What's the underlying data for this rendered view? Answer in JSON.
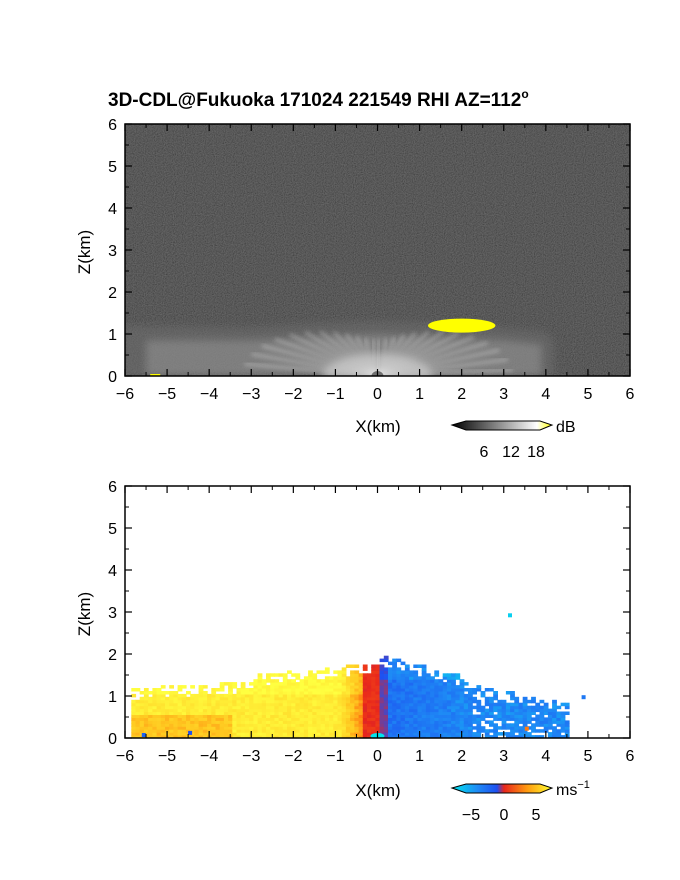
{
  "figure": {
    "title": "3D-CDL@Fukuoka 171024 221549 RHI AZ=112",
    "title_superscript": "o"
  },
  "chart_data": [
    {
      "type": "heatmap",
      "variable": "SNR",
      "xlabel": "X(km)",
      "ylabel": "Z(km)",
      "xlim": [
        -6,
        6
      ],
      "ylim": [
        0,
        6
      ],
      "xticks": [
        -6,
        -5,
        -4,
        -3,
        -2,
        -1,
        0,
        1,
        2,
        3,
        4,
        5,
        6
      ],
      "yticks": [
        0,
        1,
        2,
        3,
        4,
        5,
        6
      ],
      "colorbar": {
        "unit": "dB",
        "ticks": [
          "6",
          "12",
          "18"
        ],
        "range": [
          0,
          20
        ]
      },
      "colors": {
        "background_noise": "#262626",
        "bright": "#f2f2f2",
        "saturation": "#ffff00"
      },
      "features": [
        {
          "name": "boundary layer echo",
          "x_range": [
            -6,
            4
          ],
          "z_top": 1.2
        },
        {
          "name": "radial beams",
          "origin": [
            0,
            0
          ],
          "max_range_km": 4.2
        },
        {
          "name": "cloud echo",
          "x_range": [
            1.2,
            2.8
          ],
          "z_range": [
            1.0,
            1.4
          ]
        }
      ]
    },
    {
      "type": "heatmap",
      "variable": "Doppler velocity",
      "xlabel": "X(km)",
      "ylabel": "Z(km)",
      "xlim": [
        -6,
        6
      ],
      "ylim": [
        0,
        6
      ],
      "xticks": [
        -6,
        -5,
        -4,
        -3,
        -2,
        -1,
        0,
        1,
        2,
        3,
        4,
        5,
        6
      ],
      "yticks": [
        0,
        1,
        2,
        3,
        4,
        5,
        6
      ],
      "colorbar": {
        "unit": "ms",
        "unit_exponent": "−1",
        "ticks": [
          "−5",
          "0",
          "5"
        ],
        "range": [
          -7,
          7
        ]
      },
      "colors": {
        "negative": "#1e6ff0",
        "near_zero": "#e8261c",
        "positive": "#ffe800",
        "low_extreme": "#00e5ee"
      },
      "features": [
        {
          "name": "receding flow",
          "x_range": [
            0,
            4.5
          ],
          "z_top": 2.0,
          "velocity_ms": -4
        },
        {
          "name": "approaching flow",
          "x_range": [
            -6,
            0
          ],
          "z_top": 1.8,
          "velocity_ms": 4
        }
      ]
    }
  ]
}
